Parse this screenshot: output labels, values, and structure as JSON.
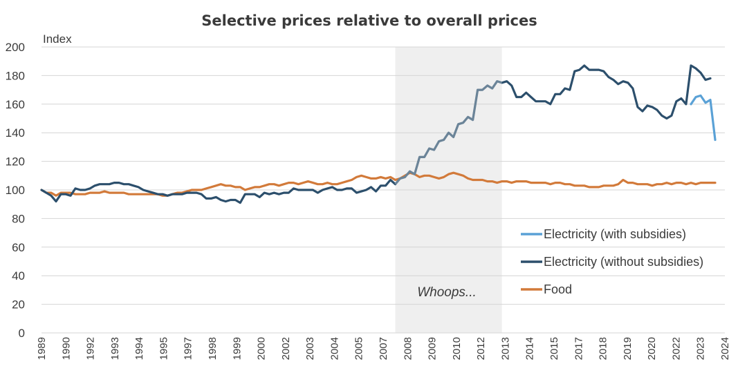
{
  "chart_data": {
    "type": "line",
    "title": "Selective prices relative to overall prices",
    "ylabel": "Index",
    "ylim": [
      0,
      200
    ],
    "yticks": [
      0,
      20,
      40,
      60,
      80,
      100,
      120,
      140,
      160,
      180,
      200
    ],
    "grid": true,
    "legend_position": "right",
    "xlim": [
      1989.0,
      2024.25
    ],
    "x_tick_labels": [
      "1989",
      "1990",
      "1992",
      "1993",
      "1994",
      "1995",
      "1997",
      "1998",
      "1999",
      "2000",
      "2002",
      "2003",
      "2004",
      "2005",
      "2007",
      "2008",
      "2009",
      "2010",
      "2012",
      "2013",
      "2014",
      "2015",
      "2017",
      "2018",
      "2019",
      "2020",
      "2022",
      "2023",
      "2024"
    ],
    "shaded_region": {
      "from": 2007.25,
      "to": 2012.75,
      "color": "#efefef",
      "label": "Whoops..."
    },
    "series": [
      {
        "name": "Electricity (with subsidies)",
        "color": "#5aa1d6",
        "points": [
          [
            2022.5,
            160
          ],
          [
            2022.75,
            165
          ],
          [
            2023.0,
            166
          ],
          [
            2023.25,
            161
          ],
          [
            2023.5,
            163
          ],
          [
            2023.75,
            135
          ]
        ]
      },
      {
        "name": "Electricity (without subsidies)",
        "color": "#2c4f6c",
        "points": [
          [
            1989.0,
            100
          ],
          [
            1989.25,
            98
          ],
          [
            1989.5,
            96
          ],
          [
            1989.75,
            92
          ],
          [
            1990.0,
            97
          ],
          [
            1990.25,
            97
          ],
          [
            1990.5,
            96
          ],
          [
            1990.75,
            101
          ],
          [
            1991.0,
            100
          ],
          [
            1991.25,
            100
          ],
          [
            1991.5,
            101
          ],
          [
            1991.75,
            103
          ],
          [
            1992.0,
            104
          ],
          [
            1992.25,
            104
          ],
          [
            1992.5,
            104
          ],
          [
            1992.75,
            105
          ],
          [
            1993.0,
            105
          ],
          [
            1993.25,
            104
          ],
          [
            1993.5,
            104
          ],
          [
            1993.75,
            103
          ],
          [
            1994.0,
            102
          ],
          [
            1994.25,
            100
          ],
          [
            1994.5,
            99
          ],
          [
            1994.75,
            98
          ],
          [
            1995.0,
            97
          ],
          [
            1995.25,
            97
          ],
          [
            1995.5,
            96
          ],
          [
            1995.75,
            97
          ],
          [
            1996.0,
            97
          ],
          [
            1996.25,
            97
          ],
          [
            1996.5,
            98
          ],
          [
            1996.75,
            98
          ],
          [
            1997.0,
            98
          ],
          [
            1997.25,
            97
          ],
          [
            1997.5,
            94
          ],
          [
            1997.75,
            94
          ],
          [
            1998.0,
            95
          ],
          [
            1998.25,
            93
          ],
          [
            1998.5,
            92
          ],
          [
            1998.75,
            93
          ],
          [
            1999.0,
            93
          ],
          [
            1999.25,
            91
          ],
          [
            1999.5,
            97
          ],
          [
            1999.75,
            97
          ],
          [
            2000.0,
            97
          ],
          [
            2000.25,
            95
          ],
          [
            2000.5,
            98
          ],
          [
            2000.75,
            97
          ],
          [
            2001.0,
            98
          ],
          [
            2001.25,
            97
          ],
          [
            2001.5,
            98
          ],
          [
            2001.75,
            98
          ],
          [
            2002.0,
            101
          ],
          [
            2002.25,
            100
          ],
          [
            2002.5,
            100
          ],
          [
            2002.75,
            100
          ],
          [
            2003.0,
            100
          ],
          [
            2003.25,
            98
          ],
          [
            2003.5,
            100
          ],
          [
            2003.75,
            101
          ],
          [
            2004.0,
            102
          ],
          [
            2004.25,
            100
          ],
          [
            2004.5,
            100
          ],
          [
            2004.75,
            101
          ],
          [
            2005.0,
            101
          ],
          [
            2005.25,
            98
          ],
          [
            2005.5,
            99
          ],
          [
            2005.75,
            100
          ],
          [
            2006.0,
            102
          ],
          [
            2006.25,
            99
          ],
          [
            2006.5,
            103
          ],
          [
            2006.75,
            103
          ],
          [
            2007.0,
            107
          ],
          [
            2007.25,
            104
          ],
          [
            2007.5,
            108
          ],
          [
            2007.75,
            109
          ],
          [
            2008.0,
            113
          ],
          [
            2008.25,
            111
          ],
          [
            2008.5,
            123
          ],
          [
            2008.75,
            123
          ],
          [
            2009.0,
            129
          ],
          [
            2009.25,
            128
          ],
          [
            2009.5,
            134
          ],
          [
            2009.75,
            135
          ],
          [
            2010.0,
            140
          ],
          [
            2010.25,
            137
          ],
          [
            2010.5,
            146
          ],
          [
            2010.75,
            147
          ],
          [
            2011.0,
            151
          ],
          [
            2011.25,
            149
          ],
          [
            2011.5,
            170
          ],
          [
            2011.75,
            170
          ],
          [
            2012.0,
            173
          ],
          [
            2012.25,
            171
          ],
          [
            2012.5,
            176
          ],
          [
            2012.75,
            175
          ],
          [
            2013.0,
            176
          ],
          [
            2013.25,
            173
          ],
          [
            2013.5,
            165
          ],
          [
            2013.75,
            165
          ],
          [
            2014.0,
            168
          ],
          [
            2014.25,
            165
          ],
          [
            2014.5,
            162
          ],
          [
            2014.75,
            162
          ],
          [
            2015.0,
            162
          ],
          [
            2015.25,
            160
          ],
          [
            2015.5,
            167
          ],
          [
            2015.75,
            167
          ],
          [
            2016.0,
            171
          ],
          [
            2016.25,
            170
          ],
          [
            2016.5,
            183
          ],
          [
            2016.75,
            184
          ],
          [
            2017.0,
            187
          ],
          [
            2017.25,
            184
          ],
          [
            2017.5,
            184
          ],
          [
            2017.75,
            184
          ],
          [
            2018.0,
            183
          ],
          [
            2018.25,
            179
          ],
          [
            2018.5,
            177
          ],
          [
            2018.75,
            174
          ],
          [
            2019.0,
            176
          ],
          [
            2019.25,
            175
          ],
          [
            2019.5,
            171
          ],
          [
            2019.75,
            158
          ],
          [
            2020.0,
            155
          ],
          [
            2020.25,
            159
          ],
          [
            2020.5,
            158
          ],
          [
            2020.75,
            156
          ],
          [
            2021.0,
            152
          ],
          [
            2021.25,
            150
          ],
          [
            2021.5,
            152
          ],
          [
            2021.75,
            162
          ],
          [
            2022.0,
            164
          ],
          [
            2022.25,
            160
          ],
          [
            2022.5,
            187
          ],
          [
            2022.75,
            185
          ],
          [
            2023.0,
            182
          ],
          [
            2023.25,
            177
          ],
          [
            2023.5,
            178
          ]
        ]
      },
      {
        "name": "Food",
        "color": "#d27a3a",
        "points": [
          [
            1989.0,
            100
          ],
          [
            1989.25,
            98
          ],
          [
            1989.5,
            98
          ],
          [
            1989.75,
            96
          ],
          [
            1990.0,
            98
          ],
          [
            1990.25,
            98
          ],
          [
            1990.5,
            98
          ],
          [
            1990.75,
            97
          ],
          [
            1991.0,
            97
          ],
          [
            1991.25,
            97
          ],
          [
            1991.5,
            98
          ],
          [
            1991.75,
            98
          ],
          [
            1992.0,
            98
          ],
          [
            1992.25,
            99
          ],
          [
            1992.5,
            98
          ],
          [
            1992.75,
            98
          ],
          [
            1993.0,
            98
          ],
          [
            1993.25,
            98
          ],
          [
            1993.5,
            97
          ],
          [
            1993.75,
            97
          ],
          [
            1994.0,
            97
          ],
          [
            1994.25,
            97
          ],
          [
            1994.5,
            97
          ],
          [
            1994.75,
            97
          ],
          [
            1995.0,
            97
          ],
          [
            1995.25,
            96
          ],
          [
            1995.5,
            96
          ],
          [
            1995.75,
            97
          ],
          [
            1996.0,
            98
          ],
          [
            1996.25,
            98
          ],
          [
            1996.5,
            99
          ],
          [
            1996.75,
            100
          ],
          [
            1997.0,
            100
          ],
          [
            1997.25,
            100
          ],
          [
            1997.5,
            101
          ],
          [
            1997.75,
            102
          ],
          [
            1998.0,
            103
          ],
          [
            1998.25,
            104
          ],
          [
            1998.5,
            103
          ],
          [
            1998.75,
            103
          ],
          [
            1999.0,
            102
          ],
          [
            1999.25,
            102
          ],
          [
            1999.5,
            100
          ],
          [
            1999.75,
            101
          ],
          [
            2000.0,
            102
          ],
          [
            2000.25,
            102
          ],
          [
            2000.5,
            103
          ],
          [
            2000.75,
            104
          ],
          [
            2001.0,
            104
          ],
          [
            2001.25,
            103
          ],
          [
            2001.5,
            104
          ],
          [
            2001.75,
            105
          ],
          [
            2002.0,
            105
          ],
          [
            2002.25,
            104
          ],
          [
            2002.5,
            105
          ],
          [
            2002.75,
            106
          ],
          [
            2003.0,
            105
          ],
          [
            2003.25,
            104
          ],
          [
            2003.5,
            104
          ],
          [
            2003.75,
            105
          ],
          [
            2004.0,
            104
          ],
          [
            2004.25,
            104
          ],
          [
            2004.5,
            105
          ],
          [
            2004.75,
            106
          ],
          [
            2005.0,
            107
          ],
          [
            2005.25,
            109
          ],
          [
            2005.5,
            110
          ],
          [
            2005.75,
            109
          ],
          [
            2006.0,
            108
          ],
          [
            2006.25,
            108
          ],
          [
            2006.5,
            109
          ],
          [
            2006.75,
            108
          ],
          [
            2007.0,
            109
          ],
          [
            2007.25,
            107
          ],
          [
            2007.5,
            108
          ],
          [
            2007.75,
            110
          ],
          [
            2008.0,
            112
          ],
          [
            2008.25,
            111
          ],
          [
            2008.5,
            109
          ],
          [
            2008.75,
            110
          ],
          [
            2009.0,
            110
          ],
          [
            2009.25,
            109
          ],
          [
            2009.5,
            108
          ],
          [
            2009.75,
            109
          ],
          [
            2010.0,
            111
          ],
          [
            2010.25,
            112
          ],
          [
            2010.5,
            111
          ],
          [
            2010.75,
            110
          ],
          [
            2011.0,
            108
          ],
          [
            2011.25,
            107
          ],
          [
            2011.5,
            107
          ],
          [
            2011.75,
            107
          ],
          [
            2012.0,
            106
          ],
          [
            2012.25,
            106
          ],
          [
            2012.5,
            105
          ],
          [
            2012.75,
            106
          ],
          [
            2013.0,
            106
          ],
          [
            2013.25,
            105
          ],
          [
            2013.5,
            106
          ],
          [
            2013.75,
            106
          ],
          [
            2014.0,
            106
          ],
          [
            2014.25,
            105
          ],
          [
            2014.5,
            105
          ],
          [
            2014.75,
            105
          ],
          [
            2015.0,
            105
          ],
          [
            2015.25,
            104
          ],
          [
            2015.5,
            105
          ],
          [
            2015.75,
            105
          ],
          [
            2016.0,
            104
          ],
          [
            2016.25,
            104
          ],
          [
            2016.5,
            103
          ],
          [
            2016.75,
            103
          ],
          [
            2017.0,
            103
          ],
          [
            2017.25,
            102
          ],
          [
            2017.5,
            102
          ],
          [
            2017.75,
            102
          ],
          [
            2018.0,
            103
          ],
          [
            2018.25,
            103
          ],
          [
            2018.5,
            103
          ],
          [
            2018.75,
            104
          ],
          [
            2019.0,
            107
          ],
          [
            2019.25,
            105
          ],
          [
            2019.5,
            105
          ],
          [
            2019.75,
            104
          ],
          [
            2020.0,
            104
          ],
          [
            2020.25,
            104
          ],
          [
            2020.5,
            103
          ],
          [
            2020.75,
            104
          ],
          [
            2021.0,
            104
          ],
          [
            2021.25,
            105
          ],
          [
            2021.5,
            104
          ],
          [
            2021.75,
            105
          ],
          [
            2022.0,
            105
          ],
          [
            2022.25,
            104
          ],
          [
            2022.5,
            105
          ],
          [
            2022.75,
            104
          ],
          [
            2023.0,
            105
          ],
          [
            2023.25,
            105
          ],
          [
            2023.5,
            105
          ],
          [
            2023.75,
            105
          ]
        ]
      }
    ]
  }
}
